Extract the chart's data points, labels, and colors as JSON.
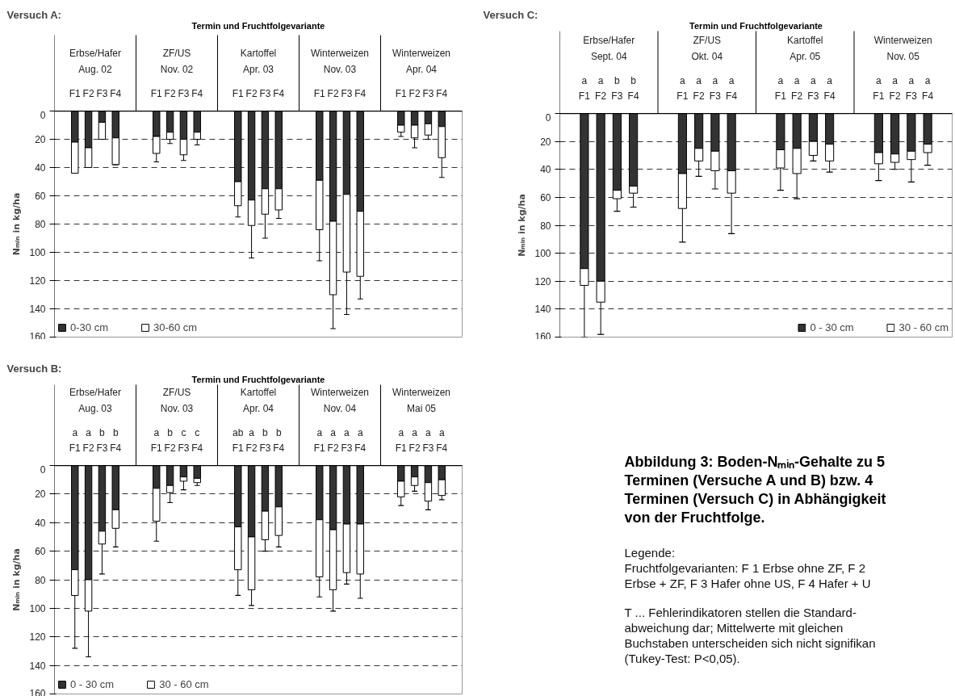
{
  "chart_data": [
    {
      "type": "bar",
      "title": "Versuch A:",
      "xlabel": "Termin und Fruchtfolgevariante",
      "ylabel": "Nₘᵢₙ in kg/ha",
      "stacked": true,
      "ylim": [
        160,
        0
      ],
      "yticks": [
        0,
        20,
        40,
        60,
        80,
        100,
        120,
        140,
        160
      ],
      "grid": "y",
      "legend": "bottom left",
      "categories": [
        null,
        "F1",
        "F2",
        "F3",
        "F4",
        null,
        null,
        "F1",
        "F2",
        "F3",
        "F4",
        null,
        null,
        "F1",
        "F2",
        "F3",
        "F4",
        null,
        null,
        "F1",
        "F2",
        "F3",
        "F4",
        null,
        null,
        "F1",
        "F2",
        "F3",
        "F4",
        null
      ],
      "series": [
        {
          "name": "0-30 cm",
          "color": "#333333",
          "values": [
            null,
            22,
            26,
            8,
            19,
            null,
            null,
            18,
            15,
            20,
            15,
            null,
            null,
            50,
            63,
            55,
            55,
            null,
            null,
            49,
            78,
            59,
            71,
            null,
            null,
            10,
            10,
            9,
            11,
            null
          ]
        },
        {
          "name": "30-60 cm",
          "color": "#ffffff",
          "values": [
            null,
            22,
            14,
            12,
            19,
            null,
            null,
            12,
            5,
            11,
            5,
            null,
            null,
            17,
            18,
            18,
            15,
            null,
            null,
            35,
            52,
            55,
            46,
            null,
            null,
            5,
            9,
            8,
            22,
            null
          ],
          "errors": [
            null,
            [
              44,
              44
            ],
            [
              40,
              40
            ],
            [
              20,
              20
            ],
            [
              38,
              38
            ],
            null,
            null,
            [
              30,
              36
            ],
            [
              20,
              23
            ],
            [
              31,
              35
            ],
            [
              20,
              24
            ],
            null,
            null,
            [
              67,
              75
            ],
            [
              81,
              104
            ],
            [
              73,
              90
            ],
            [
              70,
              76
            ],
            null,
            null,
            [
              84,
              106
            ],
            [
              130,
              154
            ],
            [
              114,
              144
            ],
            [
              117,
              133
            ],
            null,
            null,
            [
              15,
              18
            ],
            [
              19,
              26
            ],
            [
              17,
              20
            ],
            [
              33,
              47
            ],
            null
          ]
        }
      ],
      "annotations": [
        "Erbse/Hafer\nAug. 02",
        "ZF/US\nNov. 02",
        "Kartoffel\nApr. 03",
        "Winterweizen\nNov. 03",
        "Winterweizen\nApr. 04"
      ]
    },
    {
      "type": "bar",
      "title": "Versuch C:",
      "xlabel": "Termin und Fruchtfolgevariante",
      "ylabel": "Nₘᵢₙ in kg/ha",
      "stacked": true,
      "ylim": [
        160,
        0
      ],
      "yticks": [
        0,
        20,
        40,
        60,
        80,
        100,
        120,
        140,
        160
      ],
      "grid": "y",
      "legend": "bottom right",
      "categories": [
        null,
        "F1",
        "F2",
        "F3",
        "F4",
        null,
        null,
        "F1",
        "F2",
        "F3",
        "F4",
        null,
        null,
        "F1",
        "F2",
        "F3",
        "F4",
        null,
        null,
        "F1",
        "F2",
        "F3",
        "F4",
        null
      ],
      "series": [
        {
          "name": "0 - 30 cm",
          "color": "#333333",
          "values": [
            null,
            111,
            120,
            55,
            52,
            null,
            null,
            43,
            25,
            27,
            41,
            null,
            null,
            26,
            25,
            20,
            22,
            null,
            null,
            28,
            29,
            27,
            22,
            null
          ]
        },
        {
          "name": "30 - 60 cm",
          "color": "#ffffff",
          "values": [
            null,
            12,
            15,
            6,
            5,
            null,
            null,
            25,
            9,
            14,
            16,
            null,
            null,
            13,
            18,
            10,
            12,
            null,
            null,
            8,
            6,
            6,
            6,
            null
          ],
          "errors": [
            null,
            [
              123,
              160
            ],
            [
              135,
              158
            ],
            [
              61,
              70
            ],
            [
              57,
              67
            ],
            null,
            null,
            [
              68,
              92
            ],
            [
              34,
              45
            ],
            [
              41,
              54
            ],
            [
              57,
              86
            ],
            null,
            null,
            [
              39,
              55
            ],
            [
              43,
              61
            ],
            [
              30,
              34
            ],
            [
              34,
              42
            ],
            null,
            null,
            [
              36,
              48
            ],
            [
              35,
              40
            ],
            [
              33,
              49
            ],
            [
              28,
              37
            ],
            null
          ]
        }
      ],
      "annotations": [
        "Erbse/Hafer\nSept. 04",
        "ZF/US\nOkt. 04",
        "Kartoffel\nApr. 05",
        "Winterweizen\nNov. 05",
        "a",
        "a",
        "b",
        "b",
        "a",
        "a",
        "a",
        "a",
        "a",
        "a",
        "a",
        "a",
        "a",
        "a",
        "a",
        "a"
      ]
    },
    {
      "type": "bar",
      "title": "Versuch B:",
      "xlabel": "Termin und Fruchtfolgevariante",
      "ylabel": "Nₘᵢₙ in kg/ha",
      "stacked": true,
      "ylim": [
        160,
        0
      ],
      "yticks": [
        0,
        20,
        40,
        60,
        80,
        100,
        120,
        140,
        160
      ],
      "grid": "y",
      "legend": "bottom left",
      "categories": [
        null,
        "F1",
        "F2",
        "F3",
        "F4",
        null,
        null,
        "F1",
        "F2",
        "F3",
        "F4",
        null,
        null,
        "F1",
        "F2",
        "F3",
        "F4",
        null,
        null,
        "F1",
        "F2",
        "F3",
        "F4",
        null,
        null,
        "F1",
        "F2",
        "F3",
        "F4",
        null
      ],
      "series": [
        {
          "name": "0 - 30 cm",
          "color": "#333333",
          "values": [
            null,
            73,
            80,
            46,
            31,
            null,
            null,
            16,
            14,
            8,
            9,
            null,
            null,
            43,
            50,
            32,
            29,
            null,
            null,
            38,
            45,
            41,
            41,
            null,
            null,
            11,
            8,
            12,
            10,
            null
          ]
        },
        {
          "name": "30 - 60 cm",
          "color": "#ffffff",
          "values": [
            null,
            18,
            22,
            9,
            13,
            null,
            null,
            23,
            5,
            3,
            3,
            null,
            null,
            30,
            37,
            20,
            20,
            null,
            null,
            40,
            42,
            34,
            35,
            null,
            null,
            11,
            6,
            13,
            11,
            null
          ],
          "errors": [
            null,
            [
              91,
              128
            ],
            [
              102,
              134
            ],
            [
              55,
              76
            ],
            [
              44,
              57
            ],
            null,
            null,
            [
              39,
              53
            ],
            [
              19,
              26
            ],
            [
              11,
              17
            ],
            [
              12,
              14
            ],
            null,
            null,
            [
              73,
              91
            ],
            [
              87,
              98
            ],
            [
              52,
              60
            ],
            [
              49,
              57
            ],
            null,
            null,
            [
              78,
              92
            ],
            [
              87,
              102
            ],
            [
              75,
              83
            ],
            [
              76,
              93
            ],
            null,
            null,
            [
              22,
              28
            ],
            [
              14,
              18
            ],
            [
              25,
              31
            ],
            [
              21,
              24
            ],
            null
          ]
        }
      ],
      "annotations": [
        "Erbse/Hafer\nAug. 03",
        "ZF/US\nNov. 03",
        "Kartoffel\nApr. 04",
        "Winterweizen\nNov. 04",
        "Winterweizen\nMai 05",
        "a",
        "a",
        "b",
        "b",
        "a",
        "b",
        "c",
        "c",
        "ab",
        "a",
        "b",
        "b",
        "a",
        "a",
        "a",
        "a",
        "a",
        "a",
        "a",
        "a"
      ]
    },
    {
      "type": "other",
      "title": "Abbildung 3: Boden-Nₘᵢₙ-Gehalte zu 5\nTerminen (Versuche A und B) bzw. 4\nTerminen (Versuch C) in Abhängigkeit\nvon der Fruchtfolge.",
      "annotations": [
        "Legende:\nFruchtfolgevarianten: F 1  Erbse ohne ZF, F 2\nErbse + ZF, F 3  Hafer ohne US, F 4  Hafer + U",
        "T ... Fehlerindikatoren stellen die Standard-\nabweichung dar; Mittelwerte mit gleichen\nBuchstaben unterscheiden sich nicht signifikan\n(Tukey-Test: P<0,05)."
      ]
    }
  ]
}
